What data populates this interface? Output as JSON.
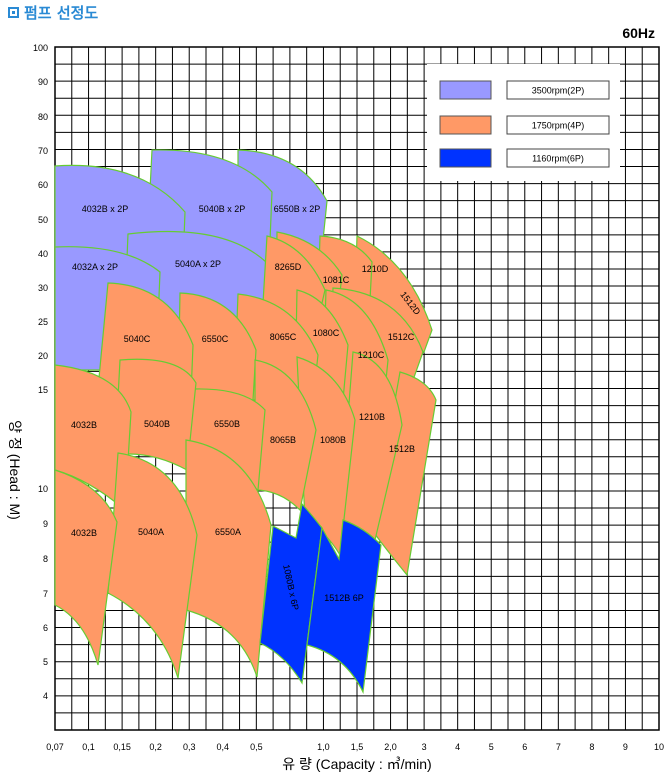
{
  "header": {
    "title": "펌프 선정도",
    "frequency": "60Hz"
  },
  "chart_data": {
    "type": "area",
    "title": "펌프 선정도",
    "subtitle": "60Hz",
    "xlabel": "유  량 (Capacity : ㎥/min)",
    "ylabel": "양  정 (Head : M)",
    "x_ticks": [
      "0,07",
      "0,1",
      "0,15",
      "0,2",
      "0,3",
      "0,4",
      "0,5",
      "1,0",
      "1,5",
      "2,0",
      "3",
      "4",
      "5",
      "6",
      "7",
      "8",
      "9",
      "10"
    ],
    "y_ticks": [
      "100",
      "90",
      "80",
      "70",
      "60",
      "50",
      "40",
      "30",
      "25",
      "20",
      "15",
      "10",
      "9",
      "8",
      "7",
      "6",
      "5",
      "4"
    ],
    "xlim": [
      0.07,
      10
    ],
    "ylim": [
      3.5,
      100
    ],
    "grid": true,
    "legend_position": "top-right",
    "legend": [
      {
        "label": "3500rpm(2P)",
        "color": "#9999ff"
      },
      {
        "label": "1750rpm(4P)",
        "color": "#ff9966"
      },
      {
        "label": "1160rpm(6P)",
        "color": "#0033ff"
      }
    ],
    "region_border_color": "#66cc33",
    "regions": [
      {
        "label": "6550B x 2P",
        "speed": "3500rpm(2P)"
      },
      {
        "label": "5040B x 2P",
        "speed": "3500rpm(2P)"
      },
      {
        "label": "4032B x 2P",
        "speed": "3500rpm(2P)"
      },
      {
        "label": "5040A x 2P",
        "speed": "3500rpm(2P)"
      },
      {
        "label": "4032A x 2P",
        "speed": "3500rpm(2P)"
      },
      {
        "label": "1512D",
        "speed": "1750rpm(4P)"
      },
      {
        "label": "1210D",
        "speed": "1750rpm(4P)"
      },
      {
        "label": "1081C",
        "speed": "1750rpm(4P)"
      },
      {
        "label": "8265D",
        "speed": "1750rpm(4P)"
      },
      {
        "label": "1512C",
        "speed": "1750rpm(4P)"
      },
      {
        "label": "1210C",
        "speed": "1750rpm(4P)"
      },
      {
        "label": "1080C",
        "speed": "1750rpm(4P)"
      },
      {
        "label": "8065C",
        "speed": "1750rpm(4P)"
      },
      {
        "label": "6550C",
        "speed": "1750rpm(4P)"
      },
      {
        "label": "5040C",
        "speed": "1750rpm(4P)"
      },
      {
        "label": "1512B",
        "speed": "1750rpm(4P)"
      },
      {
        "label": "1210B",
        "speed": "1750rpm(4P)"
      },
      {
        "label": "1080B",
        "speed": "1750rpm(4P)"
      },
      {
        "label": "8065B",
        "speed": "1750rpm(4P)"
      },
      {
        "label": "6550B",
        "speed": "1750rpm(4P)"
      },
      {
        "label": "5040B",
        "speed": "1750rpm(4P)"
      },
      {
        "label": "4032B",
        "speed": "1750rpm(4P)"
      },
      {
        "label": "6550A",
        "speed": "1750rpm(4P)"
      },
      {
        "label": "5040A",
        "speed": "1750rpm(4P)"
      },
      {
        "label": "4032B",
        "speed": "1750rpm(4P)"
      },
      {
        "label": "1080B x 6P",
        "speed": "1160rpm(6P)"
      },
      {
        "label": "1512B 6P",
        "speed": "1160rpm(6P)"
      }
    ]
  }
}
